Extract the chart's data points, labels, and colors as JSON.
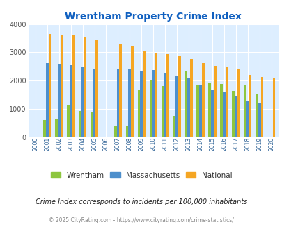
{
  "title": "Wrentham Property Crime Index",
  "title_color": "#1060c0",
  "years": [
    2000,
    2001,
    2002,
    2003,
    2004,
    2005,
    2006,
    2007,
    2008,
    2009,
    2010,
    2011,
    2012,
    2013,
    2014,
    2015,
    2016,
    2017,
    2018,
    2019,
    2020
  ],
  "wrentham": [
    0,
    620,
    660,
    1140,
    930,
    880,
    0,
    420,
    400,
    1670,
    2020,
    1820,
    770,
    2350,
    1830,
    1900,
    1880,
    1650,
    1830,
    1510,
    0
  ],
  "massachusetts": [
    0,
    2620,
    2600,
    2580,
    2490,
    2390,
    0,
    2420,
    2430,
    2330,
    2370,
    2280,
    2160,
    2070,
    1840,
    1700,
    1580,
    1460,
    1280,
    1210,
    0
  ],
  "national": [
    0,
    3640,
    3620,
    3600,
    3520,
    3450,
    0,
    3290,
    3230,
    3040,
    2960,
    2940,
    2890,
    2760,
    2620,
    2520,
    2470,
    2410,
    2200,
    2130,
    2110
  ],
  "wrentham_color": "#8dc63f",
  "massachusetts_color": "#4d8fcc",
  "national_color": "#f5a623",
  "bg_color": "#ddeeff",
  "ylim": [
    0,
    4000
  ],
  "yticks": [
    0,
    1000,
    2000,
    3000,
    4000
  ],
  "footnote": "Crime Index corresponds to incidents per 100,000 inhabitants",
  "copyright": "© 2025 CityRating.com - https://www.cityrating.com/crime-statistics/",
  "bar_width": 0.22
}
